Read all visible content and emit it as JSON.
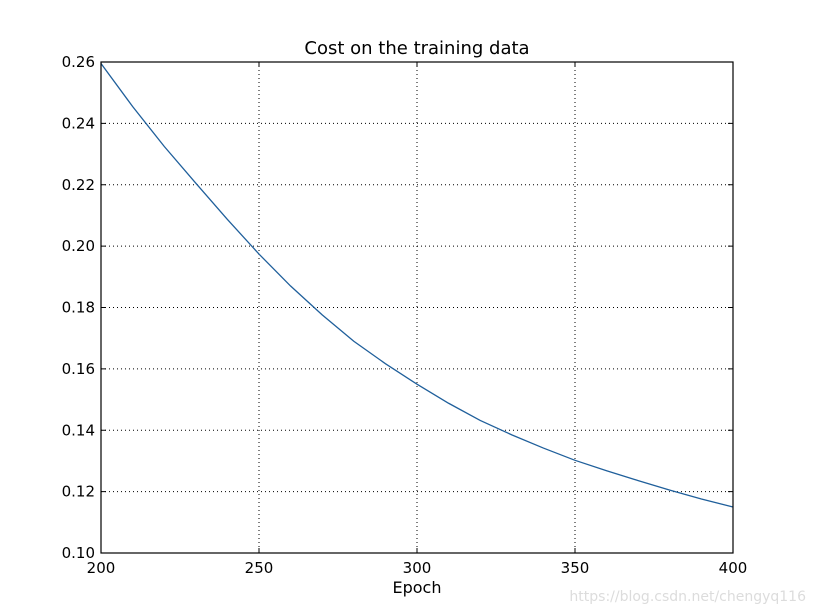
{
  "chart_data": {
    "type": "line",
    "title": "Cost on the training data",
    "xlabel": "Epoch",
    "ylabel": "",
    "xlim": [
      200,
      400
    ],
    "ylim": [
      0.1,
      0.26
    ],
    "xticks": [
      200,
      250,
      300,
      350,
      400
    ],
    "xtick_labels": [
      "200",
      "250",
      "300",
      "350",
      "400"
    ],
    "yticks": [
      0.1,
      0.12,
      0.14,
      0.16,
      0.18,
      0.2,
      0.22,
      0.24,
      0.26
    ],
    "ytick_labels": [
      "0.10",
      "0.12",
      "0.14",
      "0.16",
      "0.18",
      "0.20",
      "0.22",
      "0.24",
      "0.26"
    ],
    "grid": true,
    "series": [
      {
        "color": "#1f5f9b",
        "x": [
          200,
          210,
          220,
          230,
          240,
          250,
          260,
          270,
          280,
          290,
          300,
          310,
          320,
          330,
          340,
          350,
          360,
          370,
          380,
          390,
          400
        ],
        "y": [
          0.2595,
          0.2455,
          0.2325,
          0.2205,
          0.2087,
          0.1974,
          0.187,
          0.1776,
          0.169,
          0.1617,
          0.155,
          0.1488,
          0.1432,
          0.1385,
          0.1342,
          0.1302,
          0.1268,
          0.1236,
          0.1205,
          0.1176,
          0.115
        ]
      }
    ]
  },
  "watermark": "https://blog.csdn.net/chengyq116"
}
